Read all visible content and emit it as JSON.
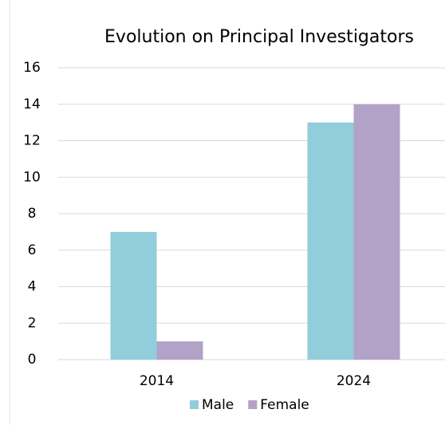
{
  "chart_data": {
    "type": "bar",
    "title": "Evolution on Principal Investigators",
    "categories": [
      "2014",
      "2024"
    ],
    "series": [
      {
        "name": "Male",
        "color": "#92cddc",
        "values": [
          7,
          13
        ]
      },
      {
        "name": "Female",
        "color": "#b3a2c7",
        "values": [
          1,
          14
        ]
      }
    ],
    "ylim": [
      0,
      16
    ],
    "yticks": [
      0,
      2,
      4,
      6,
      8,
      10,
      12,
      14,
      16
    ],
    "grid": true,
    "legend": "bottom"
  }
}
